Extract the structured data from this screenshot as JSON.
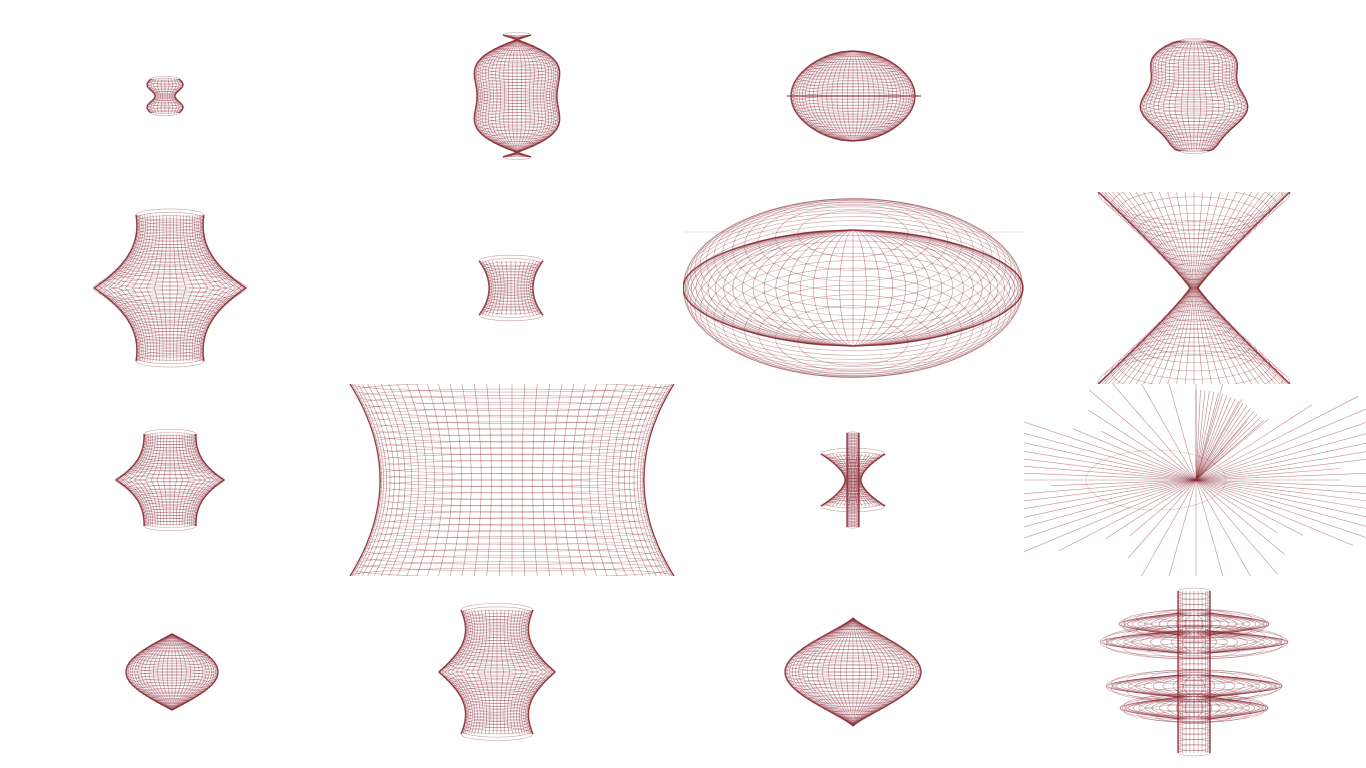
{
  "gallery": {
    "stroke_color": "#8b2e36",
    "background": "#ffffff",
    "shapes": [
      {
        "id": "shape-1",
        "kind": "small-dented-spindle"
      },
      {
        "id": "shape-2",
        "kind": "wavy-vase"
      },
      {
        "id": "shape-3",
        "kind": "oblate-sphere-with-ring"
      },
      {
        "id": "shape-4",
        "kind": "faceted-urn"
      },
      {
        "id": "shape-5",
        "kind": "star-spool"
      },
      {
        "id": "shape-6",
        "kind": "small-hourglass"
      },
      {
        "id": "shape-7",
        "kind": "flattened-lens"
      },
      {
        "id": "shape-8",
        "kind": "double-cone-hourglass"
      },
      {
        "id": "shape-9",
        "kind": "ridged-spool"
      },
      {
        "id": "shape-10",
        "kind": "close-up-hyperboloid"
      },
      {
        "id": "shape-11",
        "kind": "spiked-rod"
      },
      {
        "id": "shape-12",
        "kind": "exploding-rays"
      },
      {
        "id": "shape-13",
        "kind": "sphere"
      },
      {
        "id": "shape-14",
        "kind": "bulged-cylinder"
      },
      {
        "id": "shape-15",
        "kind": "lemon-sphere"
      },
      {
        "id": "shape-16",
        "kind": "stacked-discs"
      }
    ]
  }
}
